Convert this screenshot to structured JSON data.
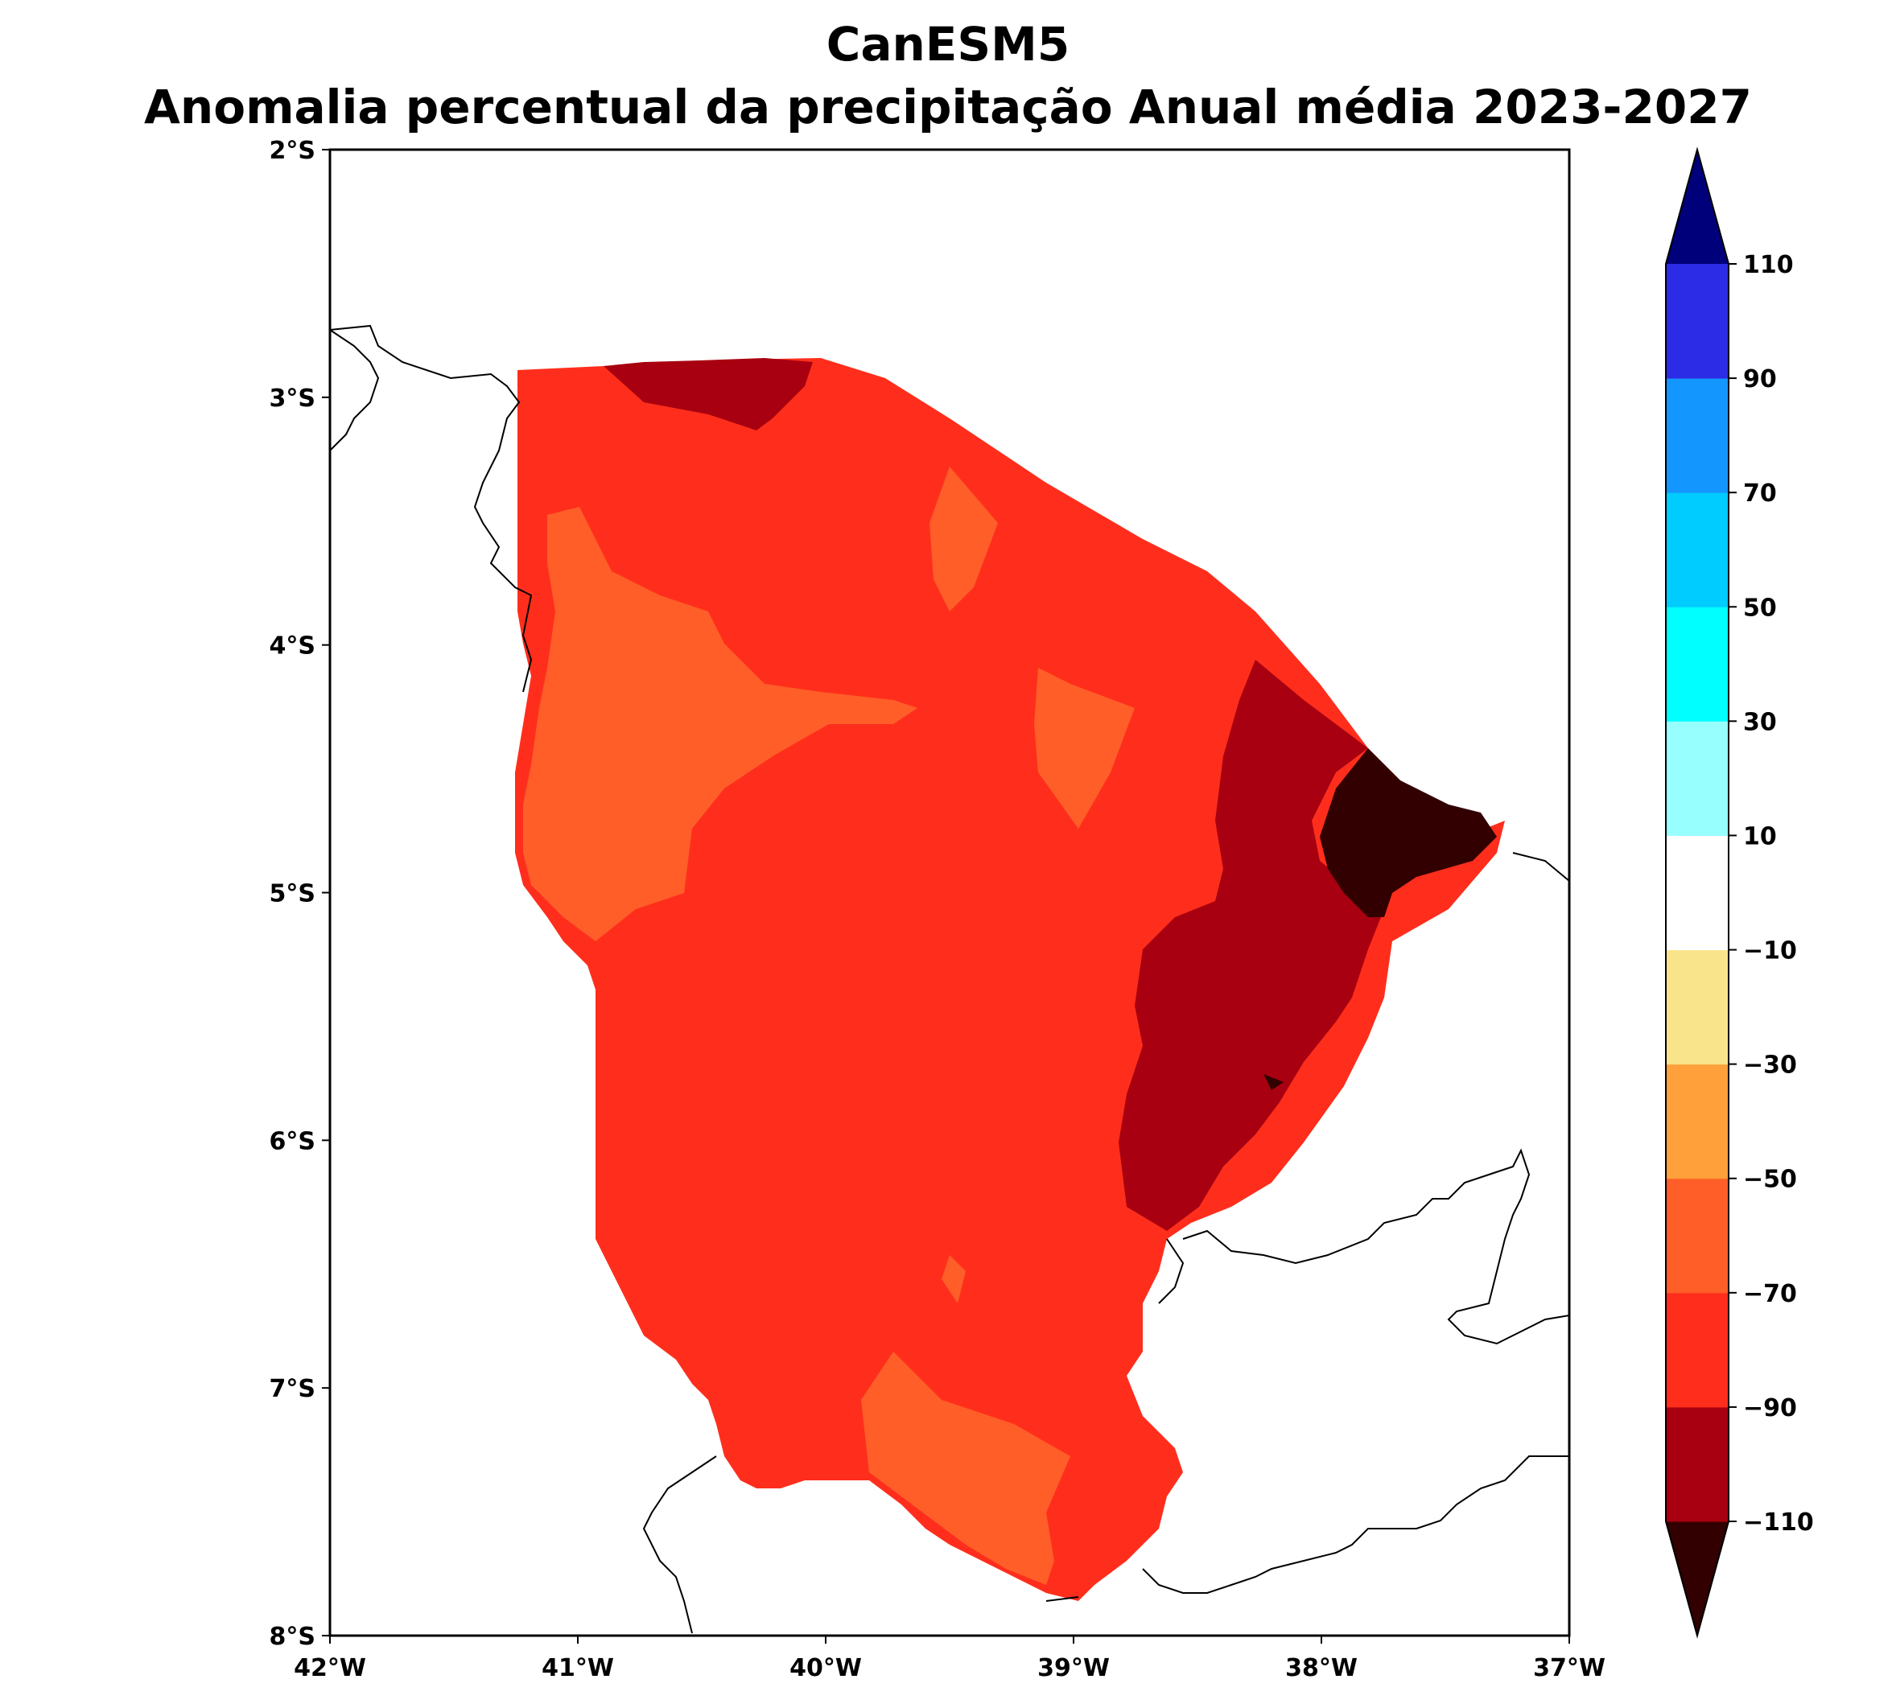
{
  "title": {
    "line1": "CanESM5",
    "line2": "Anomalia percentual da precipitação Anual média 2023-2027"
  },
  "map": {
    "lat_ticks": [
      "2°S",
      "3°S",
      "4°S",
      "5°S",
      "6°S",
      "7°S",
      "8°S"
    ],
    "lon_ticks": [
      "42°W",
      "41°W",
      "40°W",
      "39°W",
      "38°W",
      "37°W"
    ],
    "lon_range": [
      -42,
      -37
    ],
    "lat_range": [
      -8,
      -2
    ]
  },
  "colorbar": {
    "tick_labels": [
      "110",
      "90",
      "70",
      "50",
      "30",
      "10",
      "−10",
      "−30",
      "−50",
      "−70",
      "−90",
      "−110"
    ],
    "levels": [
      -110,
      -90,
      -70,
      -50,
      -30,
      -10,
      10,
      30,
      50,
      70,
      90,
      110
    ],
    "colors": [
      "#320000",
      "#a80010",
      "#ff2e1c",
      "#ff5e28",
      "#ffa03a",
      "#f9e48c",
      "#ffffff",
      "#98ffff",
      "#00ffff",
      "#00ccff",
      "#1496ff",
      "#2c2ce6",
      "#00007a"
    ],
    "extend": "both"
  },
  "region_colors": {
    "main": "#ff2e1c",
    "lighter": "#ff5e28",
    "dark": "#a80010",
    "darkest": "#320000"
  }
}
